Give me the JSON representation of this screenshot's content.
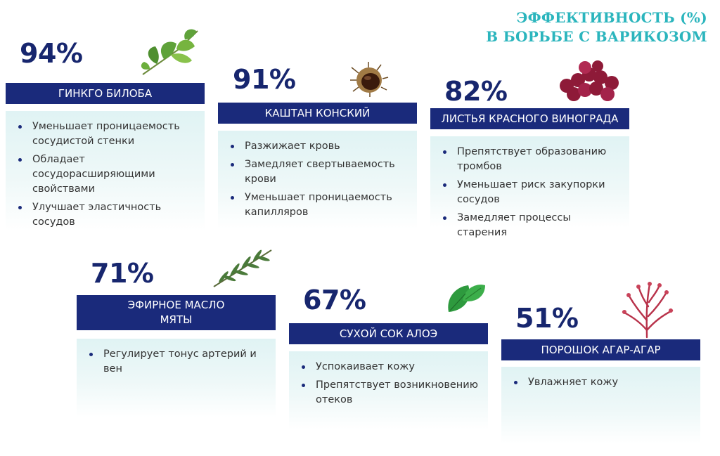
{
  "title": {
    "line1": "ЭФФЕКТИВНОСТЬ (%)",
    "line2": "В БОРЬБЕ С ВАРИКОЗОМ"
  },
  "cards": [
    {
      "percent": "94%",
      "name": "ГИНКГО БИЛОБА",
      "items": [
        "Уменьшает проницаемость сосудистой стенки",
        "Обладает сосудорасширяющими свойствами",
        "Улучшает эластичность сосудов"
      ],
      "icon": "ginkgo-leaf-icon"
    },
    {
      "percent": "91%",
      "name": "КАШТАН КОНСКИЙ",
      "items": [
        "Разжижает кровь",
        "Замедляет свертываемость крови",
        "Уменьшает проницаемость капилляров"
      ],
      "icon": "chestnut-icon"
    },
    {
      "percent": "82%",
      "name": "ЛИСТЬЯ КРАСНОГО ВИНОГРАДА",
      "items": [
        "Препятствует образованию тромбов",
        "Уменьшает риск закупорки сосудов",
        "Замедляет процессы старения"
      ],
      "icon": "grapes-icon"
    },
    {
      "percent": "71%",
      "name_line1": "ЭФИРНОЕ МАСЛО",
      "name_line2": "МЯТЫ",
      "items": [
        "Регулирует тонус артерий и вен"
      ],
      "icon": "rosemary-sprig-icon"
    },
    {
      "percent": "67%",
      "name": "СУХОЙ СОК АЛОЭ",
      "items": [
        "Успокаивает кожу",
        "Препятствует возникновению отеков"
      ],
      "icon": "mint-leaf-icon"
    },
    {
      "percent": "51%",
      "name": "ПОРОШОК АГАР-АГАР",
      "items": [
        "Увлажняет кожу"
      ],
      "icon": "seaweed-icon"
    }
  ],
  "colors": {
    "bar": "#1a2a7b",
    "percent": "#17266e",
    "title": "#2bb5bd",
    "panel": "#e0f3f4"
  }
}
